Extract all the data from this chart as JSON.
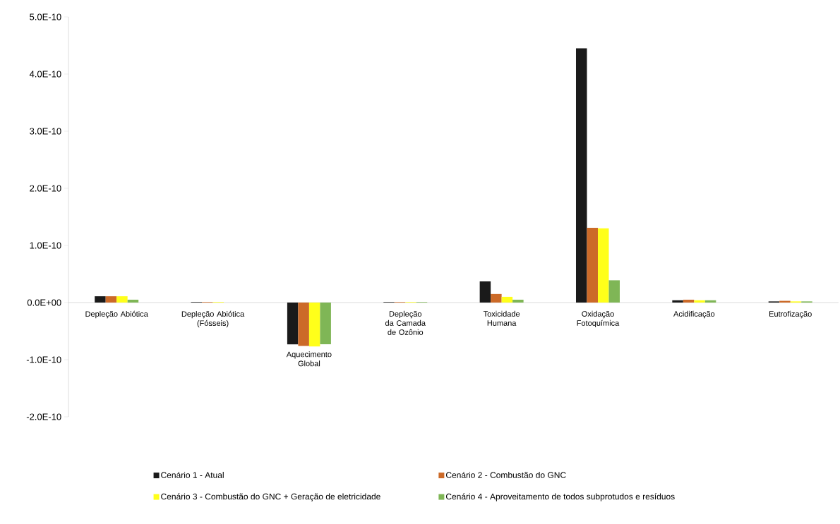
{
  "chart_data": {
    "type": "bar",
    "categories": [
      "Depleção Abiótica",
      "Depleção Abiótica (Fósseis)",
      "Aquecimento Global",
      "Depleção da Camada de Ozônio",
      "Toxicidade Humana",
      "Oxidação Fotoquímica",
      "Acidificação",
      "Eutrofização"
    ],
    "series": [
      {
        "name": "Cenário 1 - Atual",
        "color": "#1a1a1a",
        "values": [
          1.1e-11,
          1e-12,
          -7.3e-11,
          1e-12,
          3.7e-11,
          4.45e-10,
          4e-12,
          2e-12
        ]
      },
      {
        "name": "Cenário 2 - Combustão do GNC",
        "color": "#cc6a28",
        "values": [
          1.1e-11,
          1e-12,
          -7.6e-11,
          1e-12,
          1.5e-11,
          1.31e-10,
          5e-12,
          3e-12
        ]
      },
      {
        "name": "Cenário 3 - Combustão do GNC + Geração de eletricidade",
        "color": "#ffff1a",
        "values": [
          1.1e-11,
          1e-12,
          -7.7e-11,
          1e-12,
          1e-11,
          1.3e-10,
          4e-12,
          2e-12
        ]
      },
      {
        "name": "Cenário 4 - Aproveitamento de todos subprotudos e resíduos",
        "color": "#7fb656",
        "values": [
          5e-12,
          0,
          -7.3e-11,
          1e-12,
          5e-12,
          3.9e-11,
          4e-12,
          2e-12
        ]
      }
    ],
    "ylim": [
      -2e-10,
      5e-10
    ],
    "yticks": [
      {
        "value": -2e-10,
        "label": "-2.0E-10"
      },
      {
        "value": -1e-10,
        "label": "-1.0E-10"
      },
      {
        "value": 0,
        "label": "0.0E+00"
      },
      {
        "value": 1e-10,
        "label": "1.0E-10"
      },
      {
        "value": 2e-10,
        "label": "2.0E-10"
      },
      {
        "value": 3e-10,
        "label": "3.0E-10"
      },
      {
        "value": 4e-10,
        "label": "4.0E-10"
      },
      {
        "value": 5e-10,
        "label": "5.0E-10"
      }
    ],
    "legend": "bottom"
  }
}
